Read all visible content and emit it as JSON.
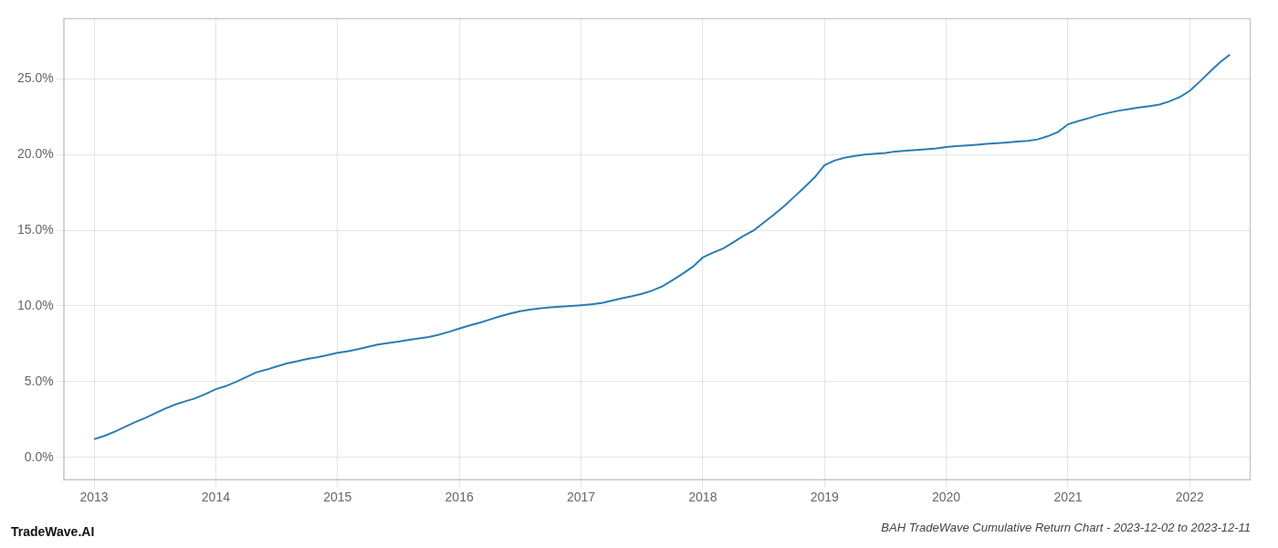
{
  "chart_data": {
    "type": "line",
    "title": "BAH TradeWave Cumulative Return Chart - 2023-12-02 to 2023-12-11",
    "annotations": [
      "TradeWave.AI"
    ],
    "x": [
      2013.0,
      2013.08,
      2013.17,
      2013.25,
      2013.33,
      2013.42,
      2013.5,
      2013.58,
      2013.67,
      2013.75,
      2013.83,
      2013.92,
      2014.0,
      2014.08,
      2014.17,
      2014.25,
      2014.33,
      2014.42,
      2014.5,
      2014.58,
      2014.67,
      2014.75,
      2014.83,
      2014.92,
      2015.0,
      2015.08,
      2015.17,
      2015.25,
      2015.33,
      2015.42,
      2015.5,
      2015.58,
      2015.67,
      2015.75,
      2015.83,
      2015.92,
      2016.0,
      2016.08,
      2016.17,
      2016.25,
      2016.33,
      2016.42,
      2016.5,
      2016.58,
      2016.67,
      2016.75,
      2016.83,
      2016.92,
      2017.0,
      2017.08,
      2017.17,
      2017.25,
      2017.33,
      2017.42,
      2017.5,
      2017.58,
      2017.67,
      2017.75,
      2017.83,
      2017.92,
      2018.0,
      2018.08,
      2018.17,
      2018.25,
      2018.33,
      2018.42,
      2018.5,
      2018.58,
      2018.67,
      2018.75,
      2018.83,
      2018.92,
      2019.0,
      2019.08,
      2019.17,
      2019.25,
      2019.33,
      2019.42,
      2019.5,
      2019.58,
      2019.67,
      2019.75,
      2019.83,
      2019.92,
      2020.0,
      2020.08,
      2020.17,
      2020.25,
      2020.33,
      2020.42,
      2020.5,
      2020.58,
      2020.67,
      2020.75,
      2020.83,
      2020.92,
      2021.0,
      2021.08,
      2021.17,
      2021.25,
      2021.33,
      2021.42,
      2021.5,
      2021.58,
      2021.67,
      2021.75,
      2021.83,
      2021.92,
      2022.0,
      2022.08,
      2022.17,
      2022.25,
      2022.33
    ],
    "values": [
      1.2,
      1.4,
      1.7,
      2.0,
      2.3,
      2.6,
      2.9,
      3.2,
      3.5,
      3.7,
      3.9,
      4.2,
      4.5,
      4.7,
      5.0,
      5.3,
      5.6,
      5.8,
      6.0,
      6.2,
      6.35,
      6.5,
      6.6,
      6.75,
      6.9,
      7.0,
      7.15,
      7.3,
      7.45,
      7.55,
      7.65,
      7.75,
      7.85,
      7.95,
      8.1,
      8.3,
      8.5,
      8.7,
      8.9,
      9.1,
      9.3,
      9.5,
      9.65,
      9.75,
      9.85,
      9.9,
      9.95,
      10.0,
      10.05,
      10.1,
      10.2,
      10.35,
      10.5,
      10.65,
      10.8,
      11.0,
      11.3,
      11.7,
      12.1,
      12.6,
      13.2,
      13.5,
      13.8,
      14.2,
      14.6,
      15.0,
      15.5,
      16.0,
      16.6,
      17.2,
      17.8,
      18.5,
      19.3,
      19.6,
      19.8,
      19.9,
      20.0,
      20.05,
      20.1,
      20.2,
      20.25,
      20.3,
      20.35,
      20.4,
      20.5,
      20.55,
      20.6,
      20.65,
      20.7,
      20.75,
      20.8,
      20.85,
      20.9,
      21.0,
      21.2,
      21.5,
      22.0,
      22.2,
      22.4,
      22.6,
      22.75,
      22.9,
      23.0,
      23.1,
      23.2,
      23.3,
      23.5,
      23.8,
      24.2,
      24.8,
      25.5,
      26.1,
      26.6
    ],
    "color": "#2a7db5",
    "xlim": [
      2012.75,
      2022.5
    ],
    "ylim": [
      -1.5,
      29.0
    ],
    "xticks": [
      2013,
      2014,
      2015,
      2016,
      2017,
      2018,
      2019,
      2020,
      2021,
      2022
    ],
    "yticks": [
      {
        "value": 0.0,
        "label": "0.0%"
      },
      {
        "value": 5.0,
        "label": "5.0%"
      },
      {
        "value": 10.0,
        "label": "10.0%"
      },
      {
        "value": 15.0,
        "label": "15.0%"
      },
      {
        "value": 20.0,
        "label": "20.0%"
      },
      {
        "value": 25.0,
        "label": "25.0%"
      }
    ],
    "grid": true
  }
}
